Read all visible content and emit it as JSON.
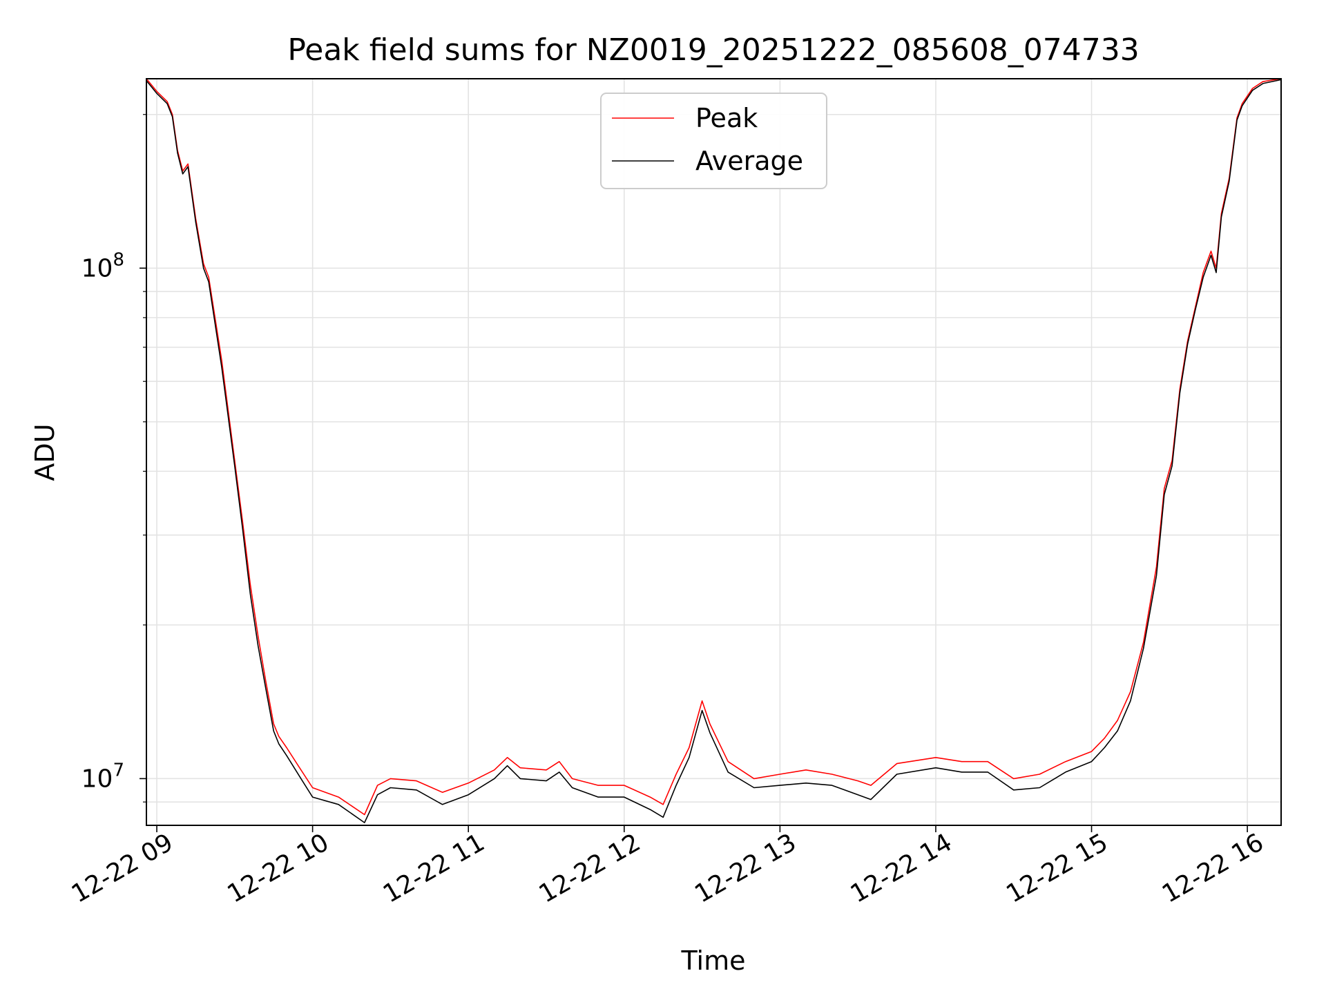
{
  "chart_data": {
    "type": "line",
    "title": "Peak field sums for NZ0019_20251222_085608_074733",
    "xlabel": "Time",
    "ylabel": "ADU",
    "xscale": "time",
    "yscale": "log",
    "xlim": [
      "2025-12-22 08:56",
      "2025-12-22 16:13"
    ],
    "ylim": [
      8100000,
      235000000
    ],
    "x_ticks": [
      {
        "value": "2025-12-22 09:00",
        "label": "12-22 09"
      },
      {
        "value": "2025-12-22 10:00",
        "label": "12-22 10"
      },
      {
        "value": "2025-12-22 11:00",
        "label": "12-22 11"
      },
      {
        "value": "2025-12-22 12:00",
        "label": "12-22 12"
      },
      {
        "value": "2025-12-22 13:00",
        "label": "12-22 13"
      },
      {
        "value": "2025-12-22 14:00",
        "label": "12-22 14"
      },
      {
        "value": "2025-12-22 15:00",
        "label": "12-22 15"
      },
      {
        "value": "2025-12-22 16:00",
        "label": "12-22 16"
      }
    ],
    "y_ticks": [
      {
        "value": 10000000,
        "base": "10",
        "exp": "7"
      },
      {
        "value": 100000000,
        "base": "10",
        "exp": "8"
      }
    ],
    "grid": true,
    "legend": {
      "placement": "upper center"
    },
    "series": [
      {
        "name": "Peak",
        "color": "#ff0000"
      },
      {
        "name": "Average",
        "color": "#000000"
      }
    ],
    "x": [
      "2025-12-22 08:56",
      "2025-12-22 09:00",
      "2025-12-22 09:04",
      "2025-12-22 09:06",
      "2025-12-22 09:08",
      "2025-12-22 09:10",
      "2025-12-22 09:12",
      "2025-12-22 09:15",
      "2025-12-22 09:18",
      "2025-12-22 09:20",
      "2025-12-22 09:25",
      "2025-12-22 09:30",
      "2025-12-22 09:33",
      "2025-12-22 09:36",
      "2025-12-22 09:39",
      "2025-12-22 09:42",
      "2025-12-22 09:45",
      "2025-12-22 09:47",
      "2025-12-22 09:50",
      "2025-12-22 09:55",
      "2025-12-22 10:00",
      "2025-12-22 10:10",
      "2025-12-22 10:20",
      "2025-12-22 10:25",
      "2025-12-22 10:30",
      "2025-12-22 10:40",
      "2025-12-22 10:50",
      "2025-12-22 11:00",
      "2025-12-22 11:10",
      "2025-12-22 11:15",
      "2025-12-22 11:20",
      "2025-12-22 11:30",
      "2025-12-22 11:35",
      "2025-12-22 11:40",
      "2025-12-22 11:50",
      "2025-12-22 12:00",
      "2025-12-22 12:10",
      "2025-12-22 12:15",
      "2025-12-22 12:20",
      "2025-12-22 12:25",
      "2025-12-22 12:30",
      "2025-12-22 12:33",
      "2025-12-22 12:40",
      "2025-12-22 12:50",
      "2025-12-22 13:00",
      "2025-12-22 13:10",
      "2025-12-22 13:20",
      "2025-12-22 13:30",
      "2025-12-22 13:35",
      "2025-12-22 13:45",
      "2025-12-22 14:00",
      "2025-12-22 14:10",
      "2025-12-22 14:20",
      "2025-12-22 14:30",
      "2025-12-22 14:40",
      "2025-12-22 14:50",
      "2025-12-22 15:00",
      "2025-12-22 15:05",
      "2025-12-22 15:10",
      "2025-12-22 15:15",
      "2025-12-22 15:20",
      "2025-12-22 15:25",
      "2025-12-22 15:28",
      "2025-12-22 15:31",
      "2025-12-22 15:34",
      "2025-12-22 15:37",
      "2025-12-22 15:40",
      "2025-12-22 15:43",
      "2025-12-22 15:46",
      "2025-12-22 15:48",
      "2025-12-22 15:50",
      "2025-12-22 15:53",
      "2025-12-22 15:56",
      "2025-12-22 15:58",
      "2025-12-22 16:02",
      "2025-12-22 16:06",
      "2025-12-22 16:13"
    ],
    "peak_values": [
      235000000,
      222000000,
      212000000,
      200000000,
      170000000,
      155000000,
      160000000,
      125000000,
      102000000,
      96000000,
      66000000,
      42000000,
      32000000,
      24000000,
      19000000,
      15500000,
      12800000,
      12100000,
      11500000,
      10500000,
      9600000,
      9200000,
      8500000,
      9700000,
      10000000,
      9900000,
      9400000,
      9800000,
      10400000,
      11000000,
      10500000,
      10400000,
      10800000,
      10000000,
      9700000,
      9700000,
      9200000,
      8900000,
      10200000,
      11500000,
      14200000,
      12800000,
      10800000,
      10000000,
      10200000,
      10400000,
      10200000,
      9900000,
      9700000,
      10700000,
      11000000,
      10800000,
      10800000,
      10000000,
      10200000,
      10800000,
      11300000,
      12000000,
      13000000,
      14800000,
      18500000,
      26000000,
      37000000,
      42000000,
      58000000,
      72000000,
      84000000,
      98000000,
      108000000,
      100000000,
      128000000,
      150000000,
      197000000,
      210000000,
      225000000,
      232000000,
      235000000
    ],
    "average_values": [
      233000000,
      220000000,
      210000000,
      198000000,
      168000000,
      153000000,
      158000000,
      123000000,
      100000000,
      94000000,
      64000000,
      41000000,
      31000000,
      23000000,
      18200000,
      15000000,
      12400000,
      11700000,
      11100000,
      10100000,
      9200000,
      8900000,
      8200000,
      9300000,
      9600000,
      9500000,
      8900000,
      9300000,
      10000000,
      10600000,
      10000000,
      9900000,
      10300000,
      9600000,
      9200000,
      9200000,
      8700000,
      8400000,
      9700000,
      11000000,
      13600000,
      12300000,
      10300000,
      9600000,
      9700000,
      9800000,
      9700000,
      9300000,
      9100000,
      10200000,
      10500000,
      10300000,
      10300000,
      9500000,
      9600000,
      10300000,
      10800000,
      11500000,
      12400000,
      14200000,
      18000000,
      25000000,
      36000000,
      41000000,
      57000000,
      71000000,
      83000000,
      96000000,
      106000000,
      98000000,
      126000000,
      148000000,
      195000000,
      208000000,
      223000000,
      230000000,
      234000000
    ]
  }
}
